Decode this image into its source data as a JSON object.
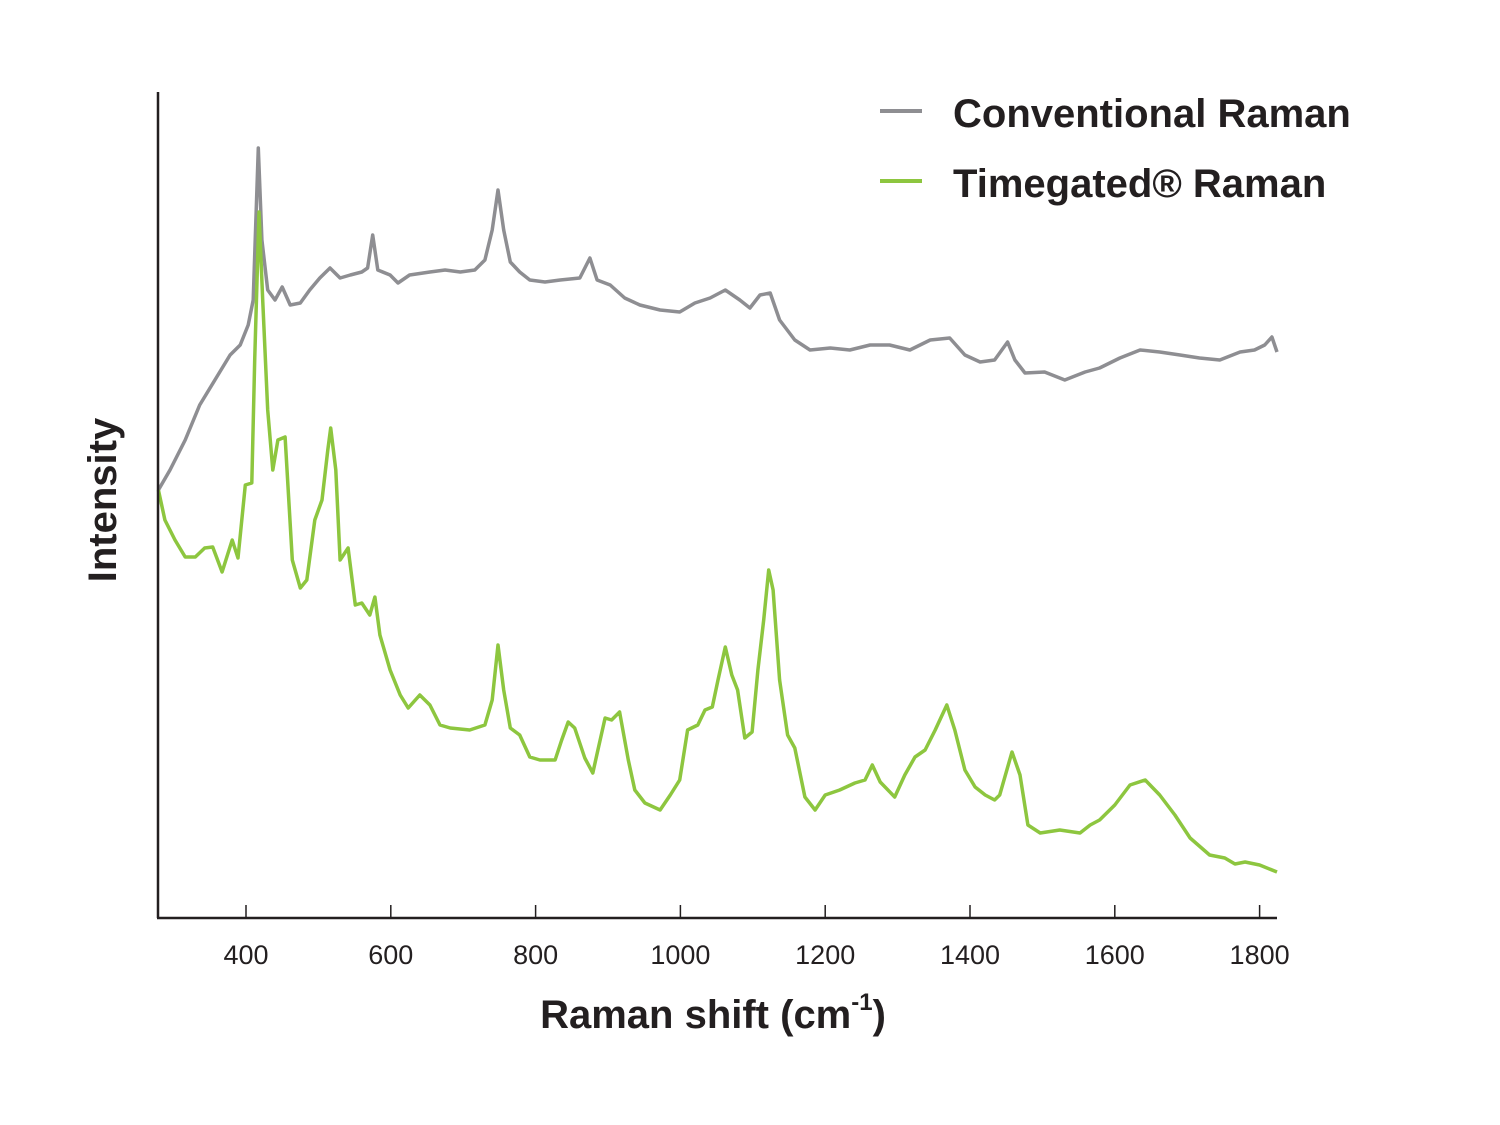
{
  "chart_data": {
    "type": "line",
    "title": "",
    "xlabel": "Raman shift (cm",
    "xlabel_sup": "-1",
    "xlabel_end": ")",
    "ylabel": "Intensity",
    "xlim": [
      279,
      1824
    ],
    "ylim": [
      0,
      826
    ],
    "y_units": "arbitrary",
    "y_ticks_shown": false,
    "grid": false,
    "legend_position": "top-right",
    "x_ticks": [
      400,
      600,
      800,
      1000,
      1200,
      1400,
      1600,
      1800
    ],
    "x_tick_labels": [
      "400",
      "600",
      "800",
      "1000",
      "1200",
      "1400",
      "1600",
      "1800"
    ],
    "series": [
      {
        "name": "Conventional Raman",
        "color": "#8e8e92",
        "x": [
          279,
          295,
          316,
          336,
          357,
          378,
          392,
          403,
          410,
          417,
          422,
          430,
          440,
          450,
          461,
          475,
          488,
          502,
          516,
          530,
          544,
          560,
          568,
          575,
          582,
          599,
          610,
          626,
          654,
          675,
          696,
          716,
          730,
          740,
          748,
          756,
          765,
          778,
          792,
          813,
          834,
          861,
          875,
          885,
          903,
          923,
          944,
          972,
          999,
          1020,
          1041,
          1062,
          1082,
          1096,
          1110,
          1124,
          1137,
          1158,
          1179,
          1207,
          1234,
          1262,
          1289,
          1317,
          1345,
          1372,
          1393,
          1414,
          1434,
          1452,
          1462,
          1476,
          1503,
          1531,
          1559,
          1579,
          1607,
          1635,
          1662,
          1690,
          1717,
          1745,
          1773,
          1793,
          1807,
          1817,
          1824
        ],
        "y": [
          428,
          448,
          478,
          513,
          538,
          563,
          573,
          593,
          618,
          770,
          678,
          628,
          618,
          631,
          613,
          615,
          628,
          640,
          650,
          640,
          643,
          646,
          650,
          683,
          648,
          643,
          635,
          643,
          646,
          648,
          646,
          648,
          658,
          688,
          728,
          688,
          656,
          646,
          638,
          636,
          638,
          640,
          660,
          638,
          633,
          620,
          613,
          608,
          606,
          615,
          620,
          628,
          618,
          610,
          623,
          625,
          598,
          578,
          568,
          570,
          568,
          573,
          573,
          568,
          578,
          580,
          563,
          556,
          558,
          576,
          558,
          545,
          546,
          538,
          546,
          550,
          560,
          568,
          566,
          563,
          560,
          558,
          566,
          568,
          573,
          581,
          566
        ]
      },
      {
        "name": "Timegated® Raman",
        "color": "#8dc63f",
        "x": [
          279,
          288,
          302,
          316,
          330,
          343,
          354,
          367,
          381,
          389,
          399,
          408,
          412,
          418,
          423,
          430,
          437,
          444,
          454,
          464,
          475,
          484,
          495,
          505,
          513,
          517,
          524,
          530,
          541,
          551,
          560,
          571,
          578,
          585,
          599,
          613,
          624,
          640,
          654,
          668,
          682,
          709,
          730,
          740,
          748,
          756,
          765,
          778,
          792,
          806,
          827,
          836,
          845,
          854,
          868,
          879,
          886,
          896,
          905,
          916,
          928,
          937,
          951,
          972,
          986,
          999,
          1010,
          1024,
          1034,
          1044,
          1052,
          1062,
          1071,
          1079,
          1089,
          1099,
          1107,
          1115,
          1122,
          1128,
          1137,
          1148,
          1158,
          1172,
          1186,
          1200,
          1220,
          1241,
          1255,
          1265,
          1276,
          1296,
          1310,
          1324,
          1338,
          1352,
          1368,
          1379,
          1393,
          1407,
          1421,
          1434,
          1441,
          1458,
          1469,
          1480,
          1497,
          1524,
          1552,
          1566,
          1579,
          1600,
          1621,
          1642,
          1662,
          1683,
          1704,
          1731,
          1752,
          1766,
          1780,
          1800,
          1824
        ],
        "y": [
          428,
          398,
          378,
          361,
          361,
          370,
          371,
          346,
          378,
          360,
          433,
          435,
          558,
          706,
          618,
          508,
          448,
          478,
          481,
          358,
          330,
          338,
          398,
          418,
          468,
          490,
          448,
          358,
          370,
          313,
          315,
          303,
          321,
          283,
          248,
          223,
          210,
          223,
          213,
          193,
          190,
          188,
          193,
          218,
          273,
          228,
          190,
          183,
          161,
          158,
          158,
          178,
          196,
          190,
          160,
          145,
          168,
          200,
          198,
          206,
          158,
          128,
          115,
          108,
          123,
          138,
          188,
          193,
          208,
          211,
          238,
          271,
          243,
          228,
          180,
          186,
          248,
          298,
          348,
          328,
          238,
          183,
          170,
          121,
          108,
          123,
          128,
          135,
          138,
          153,
          136,
          121,
          143,
          161,
          168,
          188,
          213,
          188,
          148,
          131,
          123,
          118,
          123,
          166,
          143,
          93,
          85,
          88,
          85,
          93,
          98,
          113,
          133,
          138,
          123,
          103,
          80,
          63,
          60,
          54,
          56,
          53,
          46
        ]
      }
    ]
  }
}
